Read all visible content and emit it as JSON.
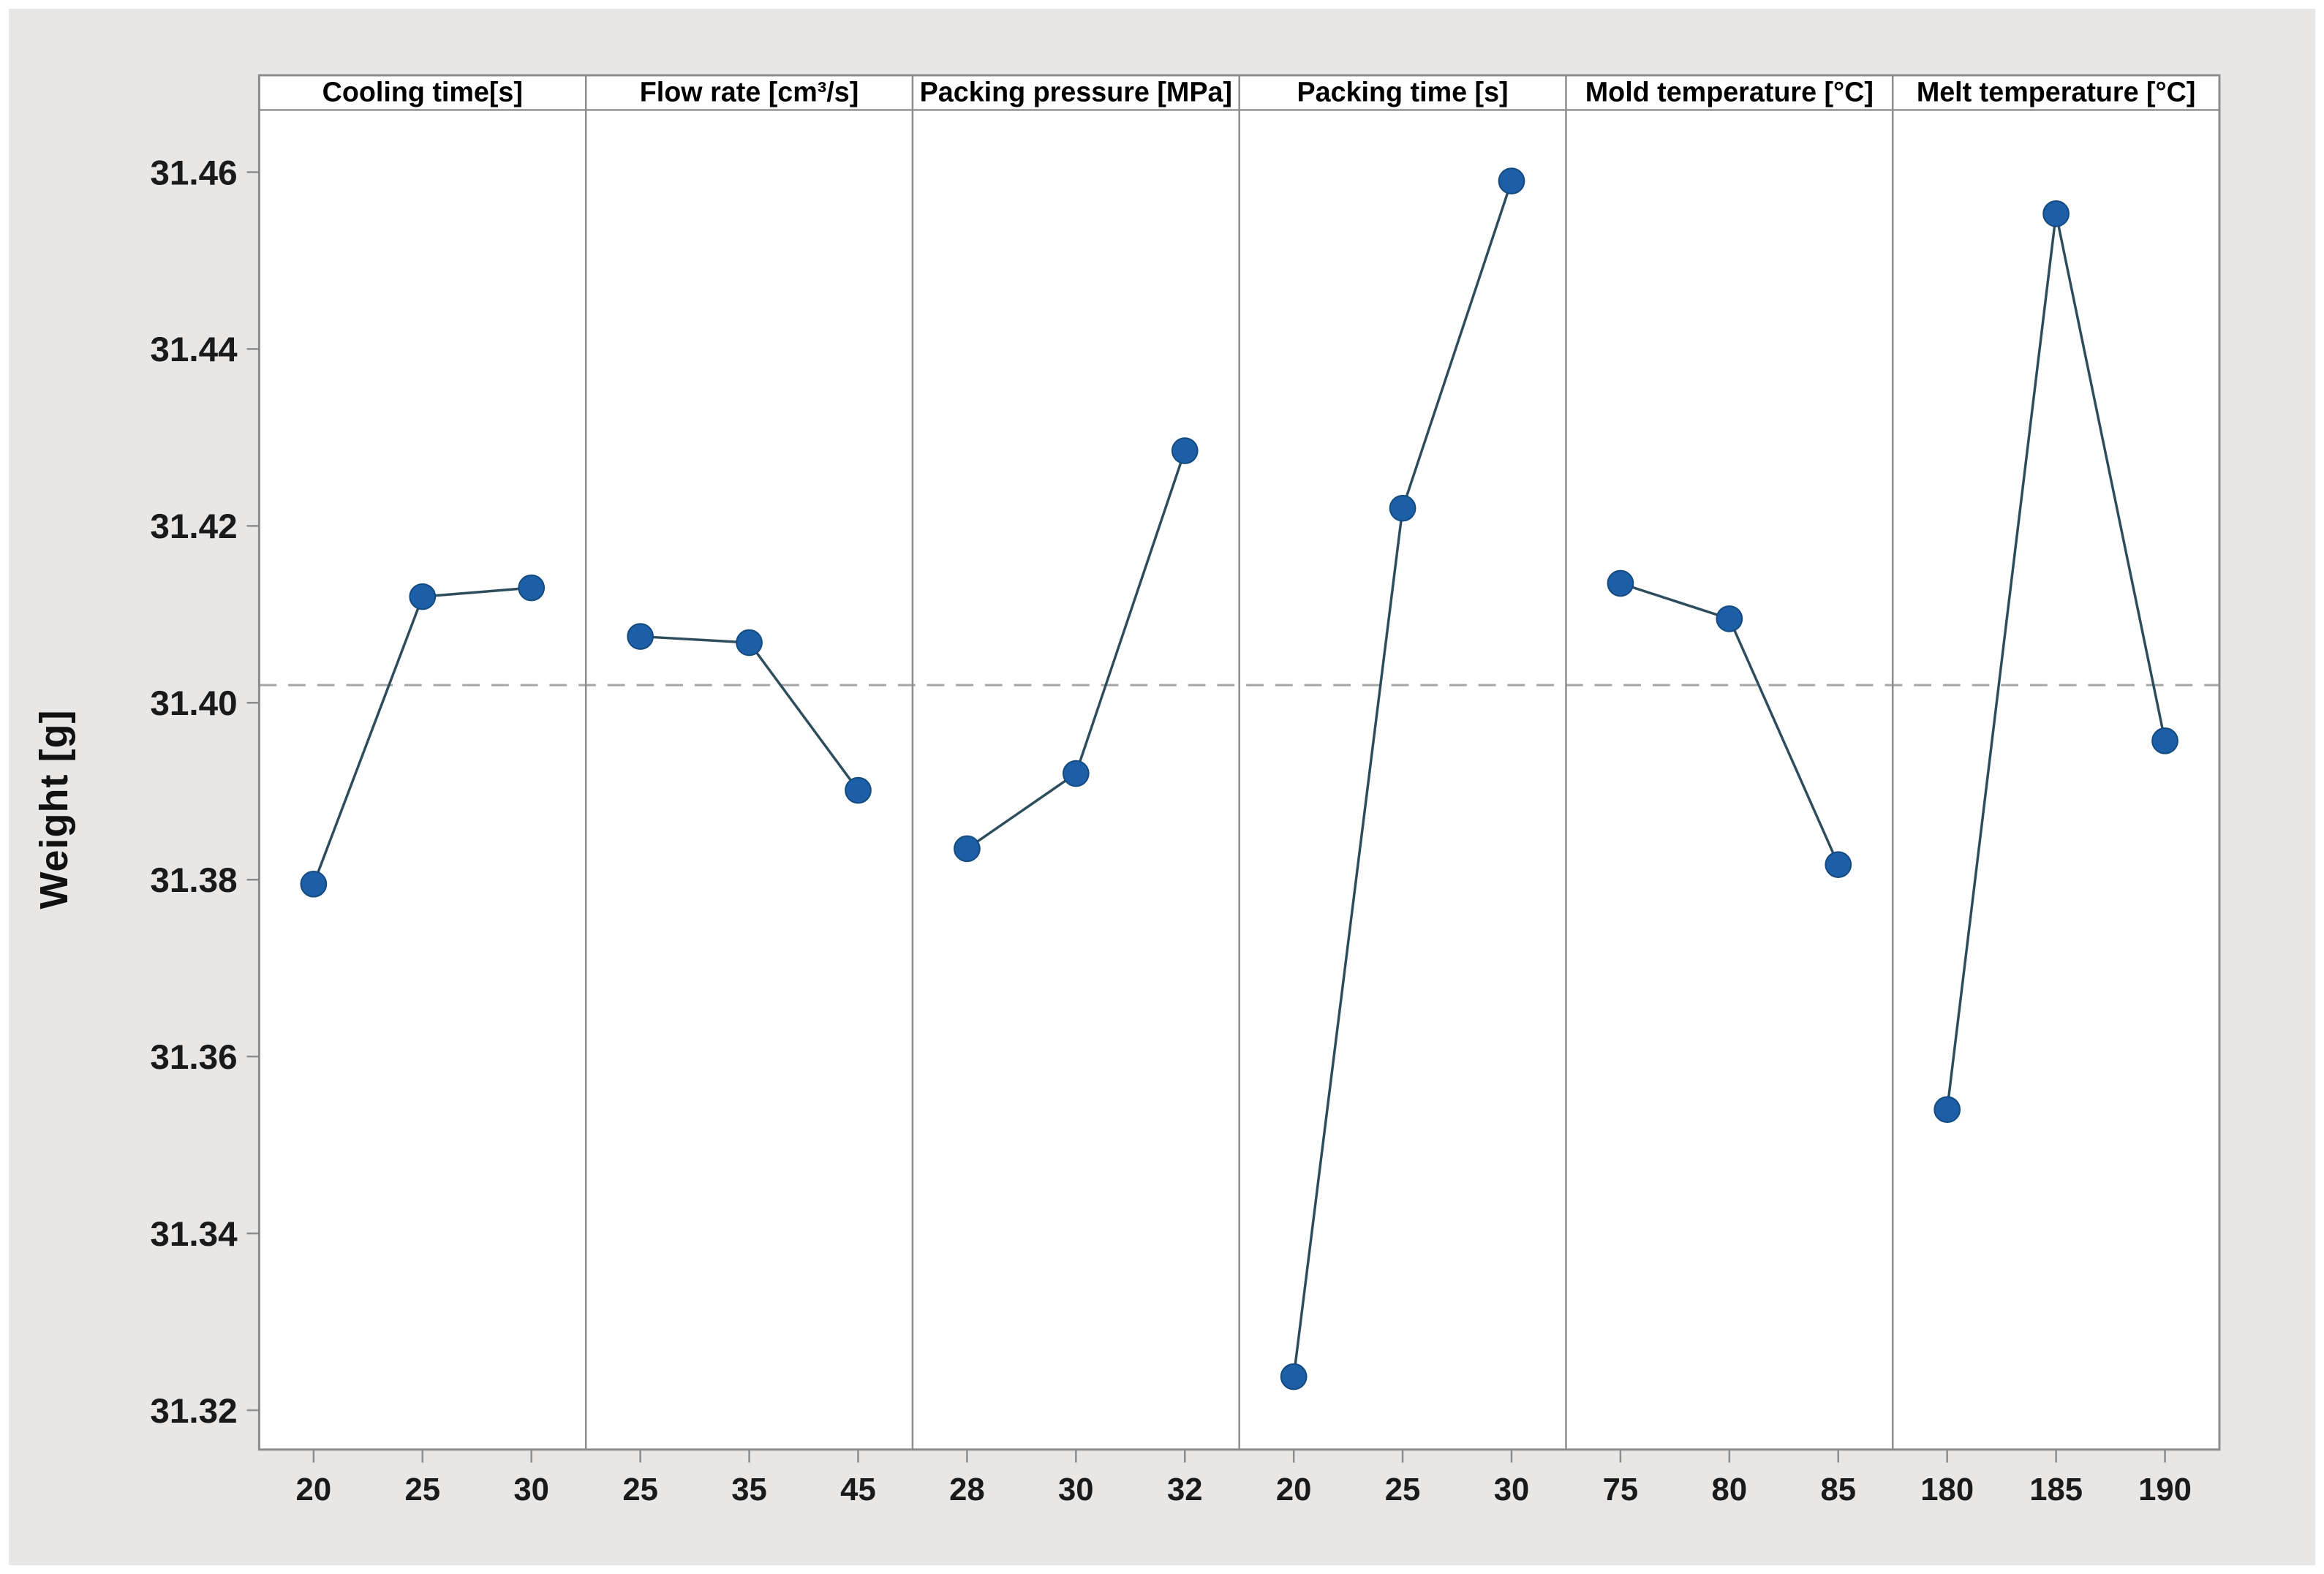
{
  "figure": {
    "background": "#e8e7e6",
    "panel_background": "#ffffff",
    "border_color": "#8c8c8c",
    "marker_color": "#1d5fa6",
    "marker_edge_color": "#134a80",
    "line_color": "#2e4d5c",
    "mean_line_color": "#a6a6a6",
    "text_color": "#1a1a1a"
  },
  "chart_data": {
    "type": "line",
    "subtype": "main-effects-plot",
    "title": "",
    "ylabel": "Weight [g]",
    "ylim": [
      31.31,
      31.468
    ],
    "yticks": [
      31.46,
      31.44,
      31.42,
      31.4,
      31.38,
      31.36,
      31.34,
      31.32
    ],
    "grand_mean": 31.402,
    "mean_line_style": "dashed",
    "grid": "off",
    "legend": "none",
    "panels": [
      {
        "label": "Cooling time[s]",
        "categories": [
          "20",
          "25",
          "30"
        ],
        "values": [
          31.3795,
          31.412,
          31.413
        ]
      },
      {
        "label": "Flow rate [cm³/s]",
        "categories": [
          "25",
          "35",
          "45"
        ],
        "values": [
          31.4075,
          31.4068,
          31.3901
        ]
      },
      {
        "label": "Packing pressure [MPa]",
        "categories": [
          "28",
          "30",
          "32"
        ],
        "values": [
          31.3835,
          31.392,
          31.4285
        ]
      },
      {
        "label": "Packing time [s]",
        "categories": [
          "20",
          "25",
          "30"
        ],
        "values": [
          31.3238,
          31.422,
          31.459
        ]
      },
      {
        "label": "Mold temperature [°C]",
        "categories": [
          "75",
          "80",
          "85"
        ],
        "values": [
          31.4135,
          31.4095,
          31.3817
        ]
      },
      {
        "label": "Melt temperature [°C]",
        "categories": [
          "180",
          "185",
          "190"
        ],
        "values": [
          31.354,
          31.4553,
          31.3957
        ]
      }
    ]
  }
}
